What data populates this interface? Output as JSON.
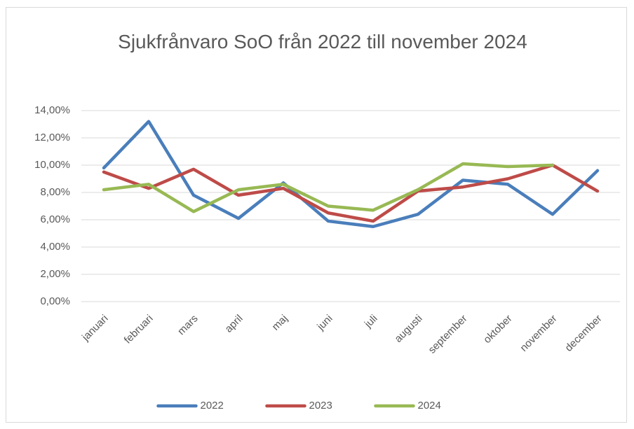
{
  "chart_data": {
    "type": "line",
    "title": "Sjukfrånvaro SoO från 2022 till november 2024",
    "categories": [
      "januari",
      "februari",
      "mars",
      "april",
      "maj",
      "juni",
      "juli",
      "augusti",
      "september",
      "oktober",
      "november",
      "december"
    ],
    "series": [
      {
        "name": "2022",
        "color": "#4a7ebb",
        "values": [
          9.8,
          13.2,
          7.8,
          6.1,
          8.7,
          5.9,
          5.5,
          6.4,
          8.9,
          8.6,
          6.4,
          9.6
        ]
      },
      {
        "name": "2023",
        "color": "#be4b48",
        "values": [
          9.5,
          8.3,
          9.7,
          7.8,
          8.3,
          6.5,
          5.9,
          8.1,
          8.4,
          9.0,
          10.0,
          8.1
        ]
      },
      {
        "name": "2024",
        "color": "#98b954",
        "values": [
          8.2,
          8.6,
          6.6,
          8.2,
          8.6,
          7.0,
          6.7,
          8.2,
          10.1,
          9.9,
          10.0,
          null
        ]
      }
    ],
    "ylim": [
      0,
      14
    ],
    "yticks": [
      {
        "value": 0,
        "label": "0,00%"
      },
      {
        "value": 2,
        "label": "2,00%"
      },
      {
        "value": 4,
        "label": "4,00%"
      },
      {
        "value": 6,
        "label": "6,00%"
      },
      {
        "value": 8,
        "label": "8,00%"
      },
      {
        "value": 10,
        "label": "10,00%"
      },
      {
        "value": 12,
        "label": "12,00%"
      },
      {
        "value": 14,
        "label": "14,00%"
      }
    ],
    "grid": true,
    "legend": "bottom"
  }
}
